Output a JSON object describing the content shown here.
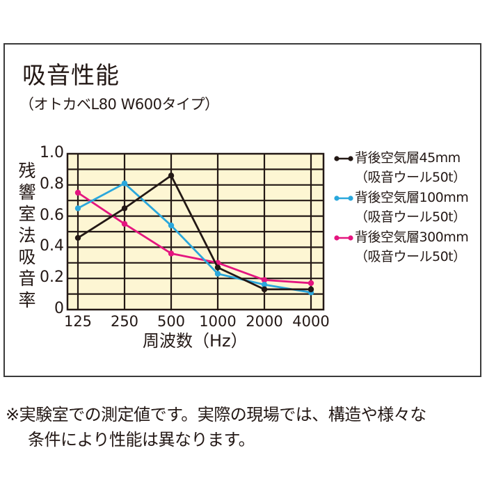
{
  "header": {
    "title": "吸音性能",
    "subtitle": "（オトカベL80 W600タイプ）"
  },
  "chart_data": {
    "type": "line",
    "title": "吸音性能",
    "subtitle": "（オトカベL80 W600タイプ）",
    "xlabel": "周波数（Hz）",
    "ylabel": "残響室法吸音率",
    "categories": [
      "125",
      "250",
      "500",
      "1000",
      "2000",
      "4000"
    ],
    "yticks": [
      "0",
      "0.2",
      "0.4",
      "0.6",
      "0.8",
      "1.0"
    ],
    "ylim": [
      0,
      1.0
    ],
    "grid": true,
    "grid_step": 0.1,
    "plot_background": "#fdf6d3",
    "legend_position": "right",
    "series": [
      {
        "name": "背後空気層45mm",
        "sub": "（吸音ウール50t）",
        "color": "#231815",
        "values": [
          0.46,
          0.65,
          0.86,
          0.27,
          0.13,
          0.13
        ]
      },
      {
        "name": "背後空気層100mm",
        "sub": "（吸音ウール50t）",
        "color": "#2aa7dc",
        "values": [
          0.65,
          0.81,
          0.54,
          0.23,
          0.16,
          0.11
        ]
      },
      {
        "name": "背後空気層300mm",
        "sub": "（吸音ウール50t）",
        "color": "#e4157f",
        "values": [
          0.75,
          0.55,
          0.36,
          0.3,
          0.19,
          0.17
        ]
      }
    ]
  },
  "footer": {
    "note_line1": "※実験室での測定値です。実際の現場では、構造や様々な",
    "note_line2": "条件により性能は異なります。"
  }
}
